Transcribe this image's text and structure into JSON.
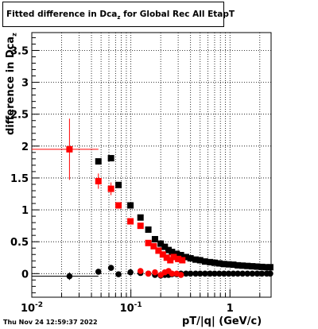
{
  "title": {
    "prefix": "Fitted difference in Dca",
    "subscript": "z",
    "suffix": " for Global Rec All EtapT"
  },
  "ylabel": {
    "text": "difference in Dca",
    "subscript": "z"
  },
  "xlabel": "pT/|q| (GeV/c)",
  "timestamp": "Thu Nov 24 12:59:37 2022",
  "chart_data": {
    "type": "scatter",
    "x_scale": "log",
    "xlim": [
      0.01,
      2.6
    ],
    "ylim": [
      -0.37,
      3.78
    ],
    "x_ticks": [
      {
        "value": 0.01,
        "label": "10",
        "sup": "-2"
      },
      {
        "value": 0.1,
        "label": "10",
        "sup": "-1"
      },
      {
        "value": 1,
        "label": "1",
        "sup": ""
      }
    ],
    "y_ticks": [
      {
        "value": 0,
        "label": "0"
      },
      {
        "value": 0.5,
        "label": "0.5"
      },
      {
        "value": 1,
        "label": "1"
      },
      {
        "value": 1.5,
        "label": "1.5"
      },
      {
        "value": 2,
        "label": "2"
      },
      {
        "value": 2.5,
        "label": "2.5"
      },
      {
        "value": 3,
        "label": "3"
      },
      {
        "value": 3.5,
        "label": "3.5"
      }
    ],
    "grid": true,
    "series": [
      {
        "marker": "square",
        "color": "#000000",
        "points": [
          {
            "x": 0.047,
            "y": 1.76
          },
          {
            "x": 0.063,
            "y": 1.81
          },
          {
            "x": 0.075,
            "y": 1.39
          },
          {
            "x": 0.099,
            "y": 1.07
          },
          {
            "x": 0.125,
            "y": 0.88
          },
          {
            "x": 0.15,
            "y": 0.69
          },
          {
            "x": 0.175,
            "y": 0.54
          },
          {
            "x": 0.2,
            "y": 0.47
          },
          {
            "x": 0.22,
            "y": 0.42
          },
          {
            "x": 0.24,
            "y": 0.37
          },
          {
            "x": 0.26,
            "y": 0.34
          },
          {
            "x": 0.29,
            "y": 0.31
          },
          {
            "x": 0.32,
            "y": 0.29
          },
          {
            "x": 0.36,
            "y": 0.26
          },
          {
            "x": 0.4,
            "y": 0.24
          },
          {
            "x": 0.45,
            "y": 0.22
          },
          {
            "x": 0.5,
            "y": 0.21
          },
          {
            "x": 0.56,
            "y": 0.19
          },
          {
            "x": 0.63,
            "y": 0.18
          },
          {
            "x": 0.7,
            "y": 0.17
          },
          {
            "x": 0.78,
            "y": 0.16
          },
          {
            "x": 0.87,
            "y": 0.15
          },
          {
            "x": 0.97,
            "y": 0.145
          },
          {
            "x": 1.08,
            "y": 0.14
          },
          {
            "x": 1.2,
            "y": 0.13
          },
          {
            "x": 1.34,
            "y": 0.125
          },
          {
            "x": 1.5,
            "y": 0.12
          },
          {
            "x": 1.68,
            "y": 0.115
          },
          {
            "x": 1.88,
            "y": 0.11
          },
          {
            "x": 2.1,
            "y": 0.105
          },
          {
            "x": 2.35,
            "y": 0.1
          },
          {
            "x": 2.55,
            "y": 0.1
          }
        ]
      },
      {
        "marker": "square",
        "color": "#ff0000",
        "points": [
          {
            "x": 0.024,
            "y": 1.95,
            "xerr": [
              0.01,
              0.047
            ],
            "yerr": 0.48
          },
          {
            "x": 0.047,
            "y": 1.45,
            "yerr": 0.12
          },
          {
            "x": 0.063,
            "y": 1.33,
            "yerr": 0.1
          },
          {
            "x": 0.075,
            "y": 1.07
          },
          {
            "x": 0.099,
            "y": 0.82
          },
          {
            "x": 0.125,
            "y": 0.75
          },
          {
            "x": 0.15,
            "y": 0.48
          },
          {
            "x": 0.17,
            "y": 0.43
          },
          {
            "x": 0.19,
            "y": 0.36
          },
          {
            "x": 0.21,
            "y": 0.3
          },
          {
            "x": 0.23,
            "y": 0.25
          },
          {
            "x": 0.25,
            "y": 0.21
          },
          {
            "x": 0.27,
            "y": 0.26
          },
          {
            "x": 0.3,
            "y": 0.23
          },
          {
            "x": 0.33,
            "y": 0.21
          }
        ]
      },
      {
        "marker": "circle",
        "color": "#000000",
        "points": [
          {
            "x": 0.024,
            "y": -0.04,
            "xerr": [
              0.01,
              0.047
            ],
            "yerr": 0.06
          },
          {
            "x": 0.047,
            "y": 0.03
          },
          {
            "x": 0.063,
            "y": 0.09
          },
          {
            "x": 0.075,
            "y": -0.01
          },
          {
            "x": 0.099,
            "y": 0.02
          },
          {
            "x": 0.125,
            "y": 0.01
          },
          {
            "x": 0.15,
            "y": 0.0
          },
          {
            "x": 0.175,
            "y": -0.02
          },
          {
            "x": 0.2,
            "y": -0.03
          },
          {
            "x": 0.22,
            "y": -0.02
          },
          {
            "x": 0.24,
            "y": -0.02
          },
          {
            "x": 0.26,
            "y": -0.01
          },
          {
            "x": 0.29,
            "y": -0.01
          },
          {
            "x": 0.32,
            "y": 0.0
          },
          {
            "x": 0.36,
            "y": 0.0
          },
          {
            "x": 0.4,
            "y": 0.0
          },
          {
            "x": 0.45,
            "y": 0.0
          },
          {
            "x": 0.5,
            "y": 0.0
          },
          {
            "x": 0.56,
            "y": 0.0
          },
          {
            "x": 0.63,
            "y": 0.0
          },
          {
            "x": 0.7,
            "y": 0.0
          },
          {
            "x": 0.78,
            "y": 0.0
          },
          {
            "x": 0.87,
            "y": 0.0
          },
          {
            "x": 0.97,
            "y": 0.0
          },
          {
            "x": 1.08,
            "y": 0.0
          },
          {
            "x": 1.2,
            "y": 0.0
          },
          {
            "x": 1.34,
            "y": 0.0
          },
          {
            "x": 1.5,
            "y": 0.0
          },
          {
            "x": 1.68,
            "y": 0.0
          },
          {
            "x": 1.88,
            "y": 0.0
          },
          {
            "x": 2.1,
            "y": 0.0
          },
          {
            "x": 2.35,
            "y": 0.0
          },
          {
            "x": 2.55,
            "y": 0.0
          }
        ]
      },
      {
        "marker": "circle",
        "color": "#ff0000",
        "points": [
          {
            "x": 0.125,
            "y": 0.04
          },
          {
            "x": 0.15,
            "y": 0.0
          },
          {
            "x": 0.175,
            "y": 0.02
          },
          {
            "x": 0.2,
            "y": -0.02
          },
          {
            "x": 0.22,
            "y": 0.02
          },
          {
            "x": 0.24,
            "y": 0.04
          },
          {
            "x": 0.26,
            "y": 0.0
          },
          {
            "x": 0.29,
            "y": 0.0
          },
          {
            "x": 0.32,
            "y": -0.02
          }
        ]
      }
    ]
  }
}
